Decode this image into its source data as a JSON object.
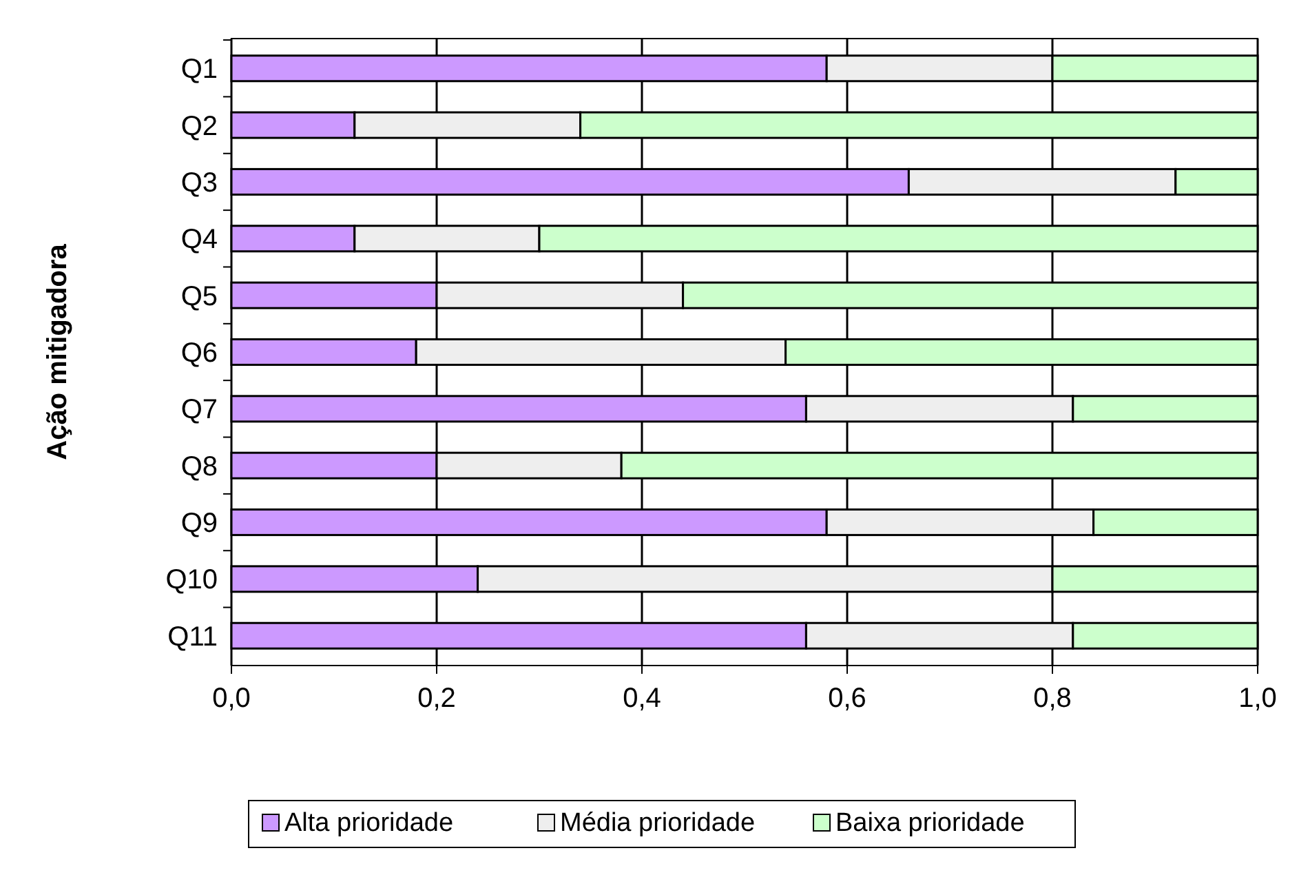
{
  "chart_data": {
    "type": "bar",
    "orientation": "horizontal",
    "stacked": true,
    "ylabel": "Ação mitigadora",
    "categories": [
      "Q1",
      "Q2",
      "Q3",
      "Q4",
      "Q5",
      "Q6",
      "Q7",
      "Q8",
      "Q9",
      "Q10",
      "Q11"
    ],
    "series": [
      {
        "name": "Alta prioridade",
        "color": "#cc99ff",
        "values": [
          0.58,
          0.12,
          0.66,
          0.12,
          0.2,
          0.18,
          0.56,
          0.2,
          0.58,
          0.24,
          0.56
        ]
      },
      {
        "name": "Média prioridade",
        "color": "#eeeeee",
        "values": [
          0.22,
          0.22,
          0.26,
          0.18,
          0.24,
          0.36,
          0.26,
          0.18,
          0.26,
          0.56,
          0.26
        ]
      },
      {
        "name": "Baixa prioridade",
        "color": "#ccffcc",
        "values": [
          0.2,
          0.66,
          0.08,
          0.7,
          0.56,
          0.46,
          0.18,
          0.62,
          0.16,
          0.2,
          0.18
        ]
      }
    ],
    "xlim": [
      0,
      1
    ],
    "xticks": [
      {
        "value": 0,
        "label": "0,0"
      },
      {
        "value": 0.2,
        "label": "0,2"
      },
      {
        "value": 0.4,
        "label": "0,4"
      },
      {
        "value": 0.6,
        "label": "0,6"
      },
      {
        "value": 0.8,
        "label": "0,8"
      },
      {
        "value": 1,
        "label": "1,0"
      }
    ],
    "grid": "x",
    "legend": "bottom"
  }
}
